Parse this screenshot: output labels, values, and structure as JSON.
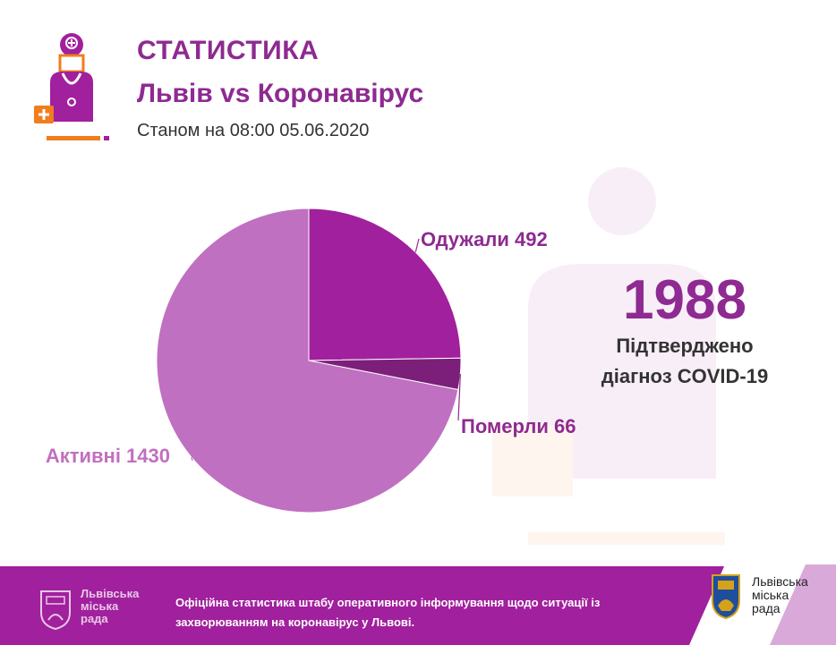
{
  "header": {
    "title": "СТАТИСТИКА",
    "subtitle": "Львів vs Коронавірус",
    "date": "Станом на 08:00 05.06.2020"
  },
  "summary": {
    "total": "1988",
    "caption_line1": "Підтверджено",
    "caption_line2": "діагноз COVID-19"
  },
  "colors": {
    "accent": "#8e2a91",
    "recovered": "#a1209d",
    "deceased": "#7b1f7a",
    "active": "#c070c0",
    "orange": "#f07d1e"
  },
  "chart_data": {
    "type": "pie",
    "slices": [
      {
        "name": "Одужали",
        "value": 492,
        "label": "Одужали 492",
        "color": "#a1209d"
      },
      {
        "name": "Померли",
        "value": 66,
        "label": "Померли 66",
        "color": "#7b1f7a"
      },
      {
        "name": "Активні",
        "value": 1430,
        "label": "Активні 1430",
        "color": "#c070c0"
      }
    ],
    "title": "",
    "legend": "none"
  },
  "footer": {
    "text": "Офіційна статистика штабу оперативного інформування щодо ситуації із захворюванням на коронавірус у Львові.",
    "city_left_line1": "Львівська",
    "city_left_line2": "міська",
    "city_left_line3": "рада",
    "city_right_line1": "Львівська",
    "city_right_line2": "міська",
    "city_right_line3": "рада"
  }
}
